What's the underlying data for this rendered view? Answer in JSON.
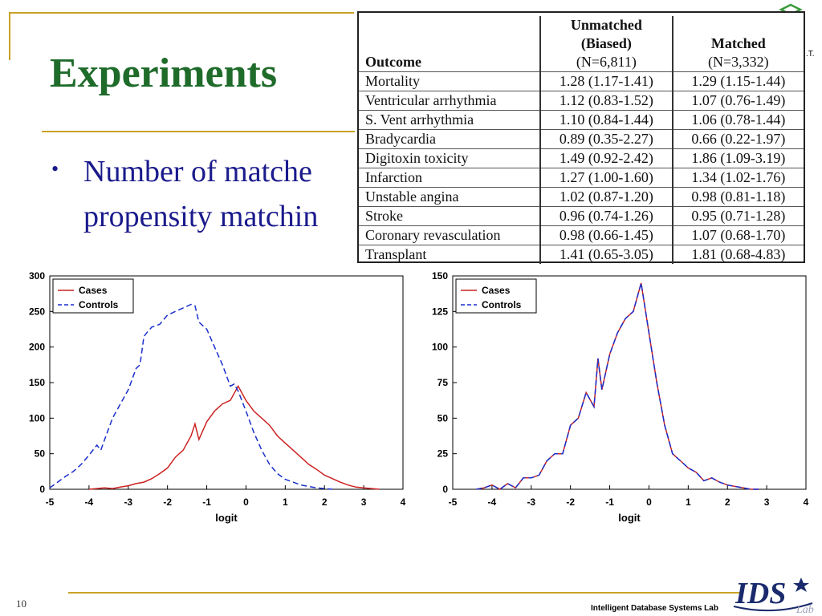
{
  "slide": {
    "title": "Experiments",
    "bullet": "Number of matched … propensity matching",
    "bullet_line1": "Number of matche",
    "bullet_line2": "propensity matchin",
    "page_number": "10",
    "footer": "Intelligent Database Systems Lab",
    "corner_mark": ".T."
  },
  "table": {
    "headers": {
      "outcome": "Outcome",
      "unmatched_line1": "Unmatched",
      "unmatched_line2": "(Biased)",
      "unmatched_line3": "(N=6,811)",
      "matched_line1": "Matched",
      "matched_line2": "(N=3,332)"
    },
    "rows": [
      {
        "outcome": "Mortality",
        "unmatched": "1.28 (1.17-1.41)",
        "matched": "1.29 (1.15-1.44)"
      },
      {
        "outcome": "Ventricular arrhythmia",
        "unmatched": "1.12 (0.83-1.52)",
        "matched": "1.07 (0.76-1.49)"
      },
      {
        "outcome": "S. Vent arrhythmia",
        "unmatched": "1.10 (0.84-1.44)",
        "matched": "1.06 (0.78-1.44)"
      },
      {
        "outcome": "Bradycardia",
        "unmatched": "0.89 (0.35-2.27)",
        "matched": "0.66 (0.22-1.97)"
      },
      {
        "outcome": "Digitoxin toxicity",
        "unmatched": "1.49 (0.92-2.42)",
        "matched": "1.86 (1.09-3.19)"
      },
      {
        "outcome": "Infarction",
        "unmatched": "1.27 (1.00-1.60)",
        "matched": "1.34 (1.02-1.76)"
      },
      {
        "outcome": "Unstable angina",
        "unmatched": "1.02 (0.87-1.20)",
        "matched": "0.98 (0.81-1.18)"
      },
      {
        "outcome": "Stroke",
        "unmatched": "0.96 (0.74-1.26)",
        "matched": "0.95 (0.71-1.28)"
      },
      {
        "outcome": "Coronary revasculation",
        "unmatched": "0.98 (0.66-1.45)",
        "matched": "1.07 (0.68-1.70)"
      },
      {
        "outcome": "Transplant",
        "unmatched": "1.41 (0.65-3.05)",
        "matched": "1.81 (0.68-4.83)"
      }
    ]
  },
  "colors": {
    "title": "#1f6b2a",
    "bullet": "#1a1a8c",
    "gold_rule": "#c9a227",
    "cases": "#cc2222",
    "controls": "#1a2fcc"
  },
  "chart_data": [
    {
      "type": "line",
      "xlabel": "logit",
      "ylabel": "",
      "xlim": [
        -5,
        4
      ],
      "ylim": [
        0,
        300
      ],
      "xticks": [
        "-5",
        "-4",
        "-3",
        "-2",
        "-1",
        "0",
        "1",
        "2",
        "3",
        "4"
      ],
      "yticks": [
        "0",
        "50",
        "100",
        "150",
        "200",
        "250",
        "300"
      ],
      "legend_position": "top-left",
      "series": [
        {
          "name": "Cases",
          "style": "solid",
          "x": [
            -4,
            -3.8,
            -3.6,
            -3.4,
            -3.2,
            -3.0,
            -2.8,
            -2.6,
            -2.4,
            -2.2,
            -2.0,
            -1.8,
            -1.6,
            -1.4,
            -1.3,
            -1.2,
            -1.0,
            -0.8,
            -0.6,
            -0.4,
            -0.2,
            0,
            0.2,
            0.4,
            0.6,
            0.8,
            1.0,
            1.2,
            1.4,
            1.6,
            1.8,
            2.0,
            2.2,
            2.4,
            2.6,
            2.8,
            3.0,
            3.2,
            3.4
          ],
          "y": [
            0,
            1,
            2,
            1,
            3,
            5,
            8,
            10,
            15,
            22,
            30,
            45,
            55,
            75,
            92,
            70,
            95,
            110,
            120,
            125,
            145,
            125,
            110,
            100,
            90,
            75,
            65,
            55,
            45,
            35,
            28,
            20,
            15,
            10,
            6,
            3,
            2,
            1,
            0
          ]
        },
        {
          "name": "Controls",
          "style": "dashed",
          "x": [
            -5,
            -4.8,
            -4.6,
            -4.4,
            -4.2,
            -4.0,
            -3.8,
            -3.7,
            -3.6,
            -3.4,
            -3.2,
            -3.0,
            -2.8,
            -2.7,
            -2.6,
            -2.5,
            -2.4,
            -2.2,
            -2.0,
            -1.8,
            -1.6,
            -1.4,
            -1.3,
            -1.2,
            -1.0,
            -0.8,
            -0.6,
            -0.4,
            -0.3,
            -0.2,
            0,
            0.2,
            0.4,
            0.6,
            0.8,
            1.0,
            1.2,
            1.4,
            1.6,
            1.8,
            2.0,
            2.2
          ],
          "y": [
            2,
            10,
            18,
            25,
            35,
            48,
            62,
            55,
            70,
            100,
            120,
            140,
            170,
            175,
            215,
            222,
            228,
            232,
            245,
            250,
            255,
            260,
            258,
            235,
            225,
            200,
            175,
            145,
            148,
            138,
            110,
            80,
            55,
            35,
            22,
            14,
            10,
            6,
            4,
            2,
            1,
            0
          ]
        }
      ]
    },
    {
      "type": "line",
      "xlabel": "logit",
      "ylabel": "",
      "xlim": [
        -5,
        4
      ],
      "ylim": [
        0,
        150
      ],
      "xticks": [
        "-5",
        "-4",
        "-3",
        "-2",
        "-1",
        "0",
        "1",
        "2",
        "3",
        "4"
      ],
      "yticks": [
        "0",
        "25",
        "50",
        "75",
        "100",
        "125",
        "150"
      ],
      "legend_position": "top-left",
      "series": [
        {
          "name": "Cases",
          "style": "solid",
          "x": [
            -4.4,
            -4.2,
            -4.0,
            -3.8,
            -3.6,
            -3.4,
            -3.2,
            -3.0,
            -2.8,
            -2.6,
            -2.4,
            -2.2,
            -2.0,
            -1.8,
            -1.6,
            -1.4,
            -1.3,
            -1.2,
            -1.0,
            -0.8,
            -0.6,
            -0.4,
            -0.2,
            0,
            0.2,
            0.4,
            0.6,
            0.8,
            1.0,
            1.2,
            1.4,
            1.6,
            1.8,
            2.0,
            2.2,
            2.4,
            2.6,
            2.8
          ],
          "y": [
            0,
            1,
            3,
            0,
            4,
            1,
            8,
            8,
            10,
            20,
            25,
            25,
            45,
            50,
            68,
            58,
            92,
            70,
            95,
            110,
            120,
            125,
            145,
            110,
            75,
            45,
            25,
            20,
            15,
            12,
            6,
            8,
            5,
            3,
            2,
            1,
            0,
            0
          ]
        },
        {
          "name": "Controls",
          "style": "dashed",
          "x": [
            -4.4,
            -4.2,
            -4.0,
            -3.8,
            -3.6,
            -3.4,
            -3.2,
            -3.0,
            -2.8,
            -2.6,
            -2.4,
            -2.2,
            -2.0,
            -1.8,
            -1.6,
            -1.4,
            -1.3,
            -1.2,
            -1.0,
            -0.8,
            -0.6,
            -0.4,
            -0.2,
            0,
            0.2,
            0.4,
            0.6,
            0.8,
            1.0,
            1.2,
            1.4,
            1.6,
            1.8,
            2.0,
            2.2,
            2.4,
            2.6,
            2.8
          ],
          "y": [
            0,
            1,
            3,
            0,
            4,
            1,
            8,
            8,
            10,
            20,
            25,
            25,
            45,
            50,
            68,
            58,
            92,
            70,
            95,
            110,
            120,
            125,
            145,
            110,
            75,
            45,
            25,
            20,
            15,
            12,
            6,
            8,
            5,
            3,
            2,
            1,
            0,
            0
          ]
        }
      ]
    }
  ]
}
